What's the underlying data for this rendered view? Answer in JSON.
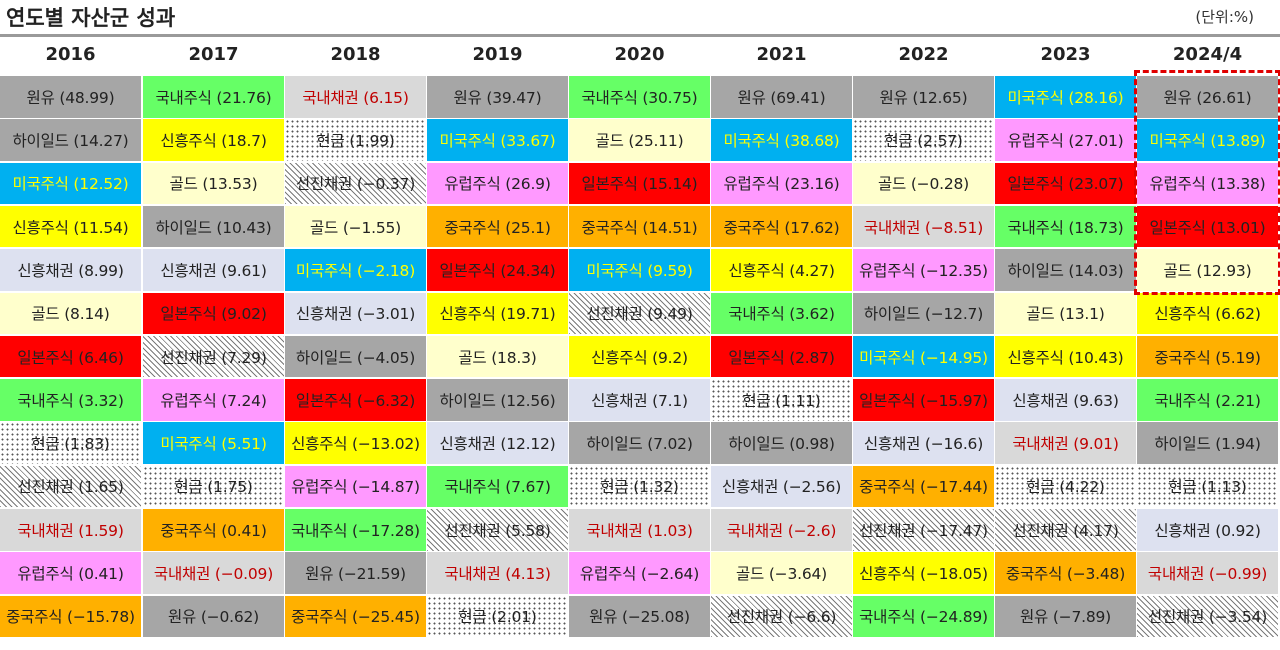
{
  "title": "연도별 자산군 성과",
  "unit": "(단위:%)",
  "colors": {
    "원유": "#a6a6a6",
    "하이일드": "#a6a6a6",
    "국내주식": "#66ff66",
    "신흥주식": "#ffff00",
    "미국주식": "#00b0f0",
    "골드": "#ffffcc",
    "신흥채권": "#dde1f0",
    "일본주식": "#ff0000",
    "유럽주식": "#ff99ff",
    "중국주식": "#ffb000",
    "국내채권": "#d9d9d9",
    "현금": "dotted-pattern",
    "선진채권": "hatched-pattern",
    "highlight_border": "#e00000"
  },
  "chart_data": {
    "type": "table",
    "title": "연도별 자산군 성과",
    "unit": "(단위:%)",
    "highlighted_column": "2024/4",
    "columns": [
      {
        "year": "2016",
        "entries": [
          {
            "asset": "원유",
            "value": 48.99,
            "label": "원유 (48.99)"
          },
          {
            "asset": "하이일드",
            "value": 14.27,
            "label": "하이일드 (14.27)"
          },
          {
            "asset": "미국주식",
            "value": 12.52,
            "label": "미국주식 (12.52)"
          },
          {
            "asset": "신흥주식",
            "value": 11.54,
            "label": "신흥주식 (11.54)"
          },
          {
            "asset": "신흥채권",
            "value": 8.99,
            "label": "신흥채권 (8.99)"
          },
          {
            "asset": "골드",
            "value": 8.14,
            "label": "골드 (8.14)"
          },
          {
            "asset": "일본주식",
            "value": 6.46,
            "label": "일본주식 (6.46)"
          },
          {
            "asset": "국내주식",
            "value": 3.32,
            "label": "국내주식 (3.32)"
          },
          {
            "asset": "현금",
            "value": 1.83,
            "label": "현금 (1.83)"
          },
          {
            "asset": "선진채권",
            "value": 1.65,
            "label": "선진채권 (1.65)"
          },
          {
            "asset": "국내채권",
            "value": 1.59,
            "label": "국내채권 (1.59)"
          },
          {
            "asset": "유럽주식",
            "value": 0.41,
            "label": "유럽주식 (0.41)"
          },
          {
            "asset": "중국주식",
            "value": -15.78,
            "label": "중국주식 (−15.78)"
          }
        ]
      },
      {
        "year": "2017",
        "entries": [
          {
            "asset": "국내주식",
            "value": 21.76,
            "label": "국내주식 (21.76)"
          },
          {
            "asset": "신흥주식",
            "value": 18.7,
            "label": "신흥주식 (18.7)"
          },
          {
            "asset": "골드",
            "value": 13.53,
            "label": "골드 (13.53)"
          },
          {
            "asset": "하이일드",
            "value": 10.43,
            "label": "하이일드 (10.43)"
          },
          {
            "asset": "신흥채권",
            "value": 9.61,
            "label": "신흥채권 (9.61)"
          },
          {
            "asset": "일본주식",
            "value": 9.02,
            "label": "일본주식 (9.02)"
          },
          {
            "asset": "선진채권",
            "value": 7.29,
            "label": "선진채권 (7.29)"
          },
          {
            "asset": "유럽주식",
            "value": 7.24,
            "label": "유럽주식 (7.24)"
          },
          {
            "asset": "미국주식",
            "value": 5.51,
            "label": "미국주식 (5.51)"
          },
          {
            "asset": "현금",
            "value": 1.75,
            "label": "현금 (1.75)"
          },
          {
            "asset": "중국주식",
            "value": 0.41,
            "label": "중국주식 (0.41)"
          },
          {
            "asset": "국내채권",
            "value": -0.09,
            "label": "국내채권 (−0.09)"
          },
          {
            "asset": "원유",
            "value": -0.62,
            "label": "원유 (−0.62)"
          }
        ]
      },
      {
        "year": "2018",
        "entries": [
          {
            "asset": "국내채권",
            "value": 6.15,
            "label": "국내채권 (6.15)"
          },
          {
            "asset": "현금",
            "value": 1.99,
            "label": "현금 (1.99)"
          },
          {
            "asset": "선진채권",
            "value": -0.37,
            "label": "선진채권 (−0.37)"
          },
          {
            "asset": "골드",
            "value": -1.55,
            "label": "골드 (−1.55)"
          },
          {
            "asset": "미국주식",
            "value": -2.18,
            "label": "미국주식 (−2.18)"
          },
          {
            "asset": "신흥채권",
            "value": -3.01,
            "label": "신흥채권 (−3.01)"
          },
          {
            "asset": "하이일드",
            "value": -4.05,
            "label": "하이일드 (−4.05)"
          },
          {
            "asset": "일본주식",
            "value": -6.32,
            "label": "일본주식 (−6.32)"
          },
          {
            "asset": "신흥주식",
            "value": -13.02,
            "label": "신흥주식 (−13.02)"
          },
          {
            "asset": "유럽주식",
            "value": -14.87,
            "label": "유럽주식 (−14.87)"
          },
          {
            "asset": "국내주식",
            "value": -17.28,
            "label": "국내주식 (−17.28)"
          },
          {
            "asset": "원유",
            "value": -21.59,
            "label": "원유 (−21.59)"
          },
          {
            "asset": "중국주식",
            "value": -25.45,
            "label": "중국주식 (−25.45)"
          }
        ]
      },
      {
        "year": "2019",
        "entries": [
          {
            "asset": "원유",
            "value": 39.47,
            "label": "원유 (39.47)"
          },
          {
            "asset": "미국주식",
            "value": 33.67,
            "label": "미국주식 (33.67)"
          },
          {
            "asset": "유럽주식",
            "value": 26.9,
            "label": "유럽주식 (26.9)"
          },
          {
            "asset": "중국주식",
            "value": 25.1,
            "label": "중국주식 (25.1)"
          },
          {
            "asset": "일본주식",
            "value": 24.34,
            "label": "일본주식 (24.34)"
          },
          {
            "asset": "신흥주식",
            "value": 19.71,
            "label": "신흥주식 (19.71)"
          },
          {
            "asset": "골드",
            "value": 18.3,
            "label": "골드 (18.3)"
          },
          {
            "asset": "하이일드",
            "value": 12.56,
            "label": "하이일드 (12.56)"
          },
          {
            "asset": "신흥채권",
            "value": 12.12,
            "label": "신흥채권 (12.12)"
          },
          {
            "asset": "국내주식",
            "value": 7.67,
            "label": "국내주식 (7.67)"
          },
          {
            "asset": "선진채권",
            "value": 5.58,
            "label": "선진채권 (5.58)"
          },
          {
            "asset": "국내채권",
            "value": 4.13,
            "label": "국내채권 (4.13)"
          },
          {
            "asset": "현금",
            "value": 2.01,
            "label": "현금 (2.01)"
          }
        ]
      },
      {
        "year": "2020",
        "entries": [
          {
            "asset": "국내주식",
            "value": 30.75,
            "label": "국내주식 (30.75)"
          },
          {
            "asset": "골드",
            "value": 25.11,
            "label": "골드 (25.11)"
          },
          {
            "asset": "일본주식",
            "value": 15.14,
            "label": "일본주식 (15.14)"
          },
          {
            "asset": "중국주식",
            "value": 14.51,
            "label": "중국주식 (14.51)"
          },
          {
            "asset": "미국주식",
            "value": 9.59,
            "label": "미국주식 (9.59)"
          },
          {
            "asset": "선진채권",
            "value": 9.49,
            "label": "선진채권 (9.49)"
          },
          {
            "asset": "신흥주식",
            "value": 9.2,
            "label": "신흥주식 (9.2)"
          },
          {
            "asset": "신흥채권",
            "value": 7.1,
            "label": "신흥채권 (7.1)"
          },
          {
            "asset": "하이일드",
            "value": 7.02,
            "label": "하이일드 (7.02)"
          },
          {
            "asset": "현금",
            "value": 1.32,
            "label": "현금 (1.32)"
          },
          {
            "asset": "국내채권",
            "value": 1.03,
            "label": "국내채권 (1.03)"
          },
          {
            "asset": "유럽주식",
            "value": -2.64,
            "label": "유럽주식 (−2.64)"
          },
          {
            "asset": "원유",
            "value": -25.08,
            "label": "원유 (−25.08)"
          }
        ]
      },
      {
        "year": "2021",
        "entries": [
          {
            "asset": "원유",
            "value": 69.41,
            "label": "원유 (69.41)"
          },
          {
            "asset": "미국주식",
            "value": 38.68,
            "label": "미국주식 (38.68)"
          },
          {
            "asset": "유럽주식",
            "value": 23.16,
            "label": "유럽주식 (23.16)"
          },
          {
            "asset": "중국주식",
            "value": 17.62,
            "label": "중국주식 (17.62)"
          },
          {
            "asset": "신흥주식",
            "value": 4.27,
            "label": "신흥주식 (4.27)"
          },
          {
            "asset": "국내주식",
            "value": 3.62,
            "label": "국내주식 (3.62)"
          },
          {
            "asset": "일본주식",
            "value": 2.87,
            "label": "일본주식 (2.87)"
          },
          {
            "asset": "현금",
            "value": 1.11,
            "label": "현금 (1.11)"
          },
          {
            "asset": "하이일드",
            "value": 0.98,
            "label": "하이일드 (0.98)"
          },
          {
            "asset": "신흥채권",
            "value": -2.56,
            "label": "신흥채권 (−2.56)"
          },
          {
            "asset": "국내채권",
            "value": -2.6,
            "label": "국내채권 (−2.6)"
          },
          {
            "asset": "골드",
            "value": -3.64,
            "label": "골드 (−3.64)"
          },
          {
            "asset": "선진채권",
            "value": -6.6,
            "label": "선진채권 (−6.6)"
          }
        ]
      },
      {
        "year": "2022",
        "entries": [
          {
            "asset": "원유",
            "value": 12.65,
            "label": "원유 (12.65)"
          },
          {
            "asset": "현금",
            "value": 2.57,
            "label": "현금 (2.57)"
          },
          {
            "asset": "골드",
            "value": -0.28,
            "label": "골드 (−0.28)"
          },
          {
            "asset": "국내채권",
            "value": -8.51,
            "label": "국내채권 (−8.51)"
          },
          {
            "asset": "유럽주식",
            "value": -12.35,
            "label": "유럽주식 (−12.35)"
          },
          {
            "asset": "하이일드",
            "value": -12.7,
            "label": "하이일드 (−12.7)"
          },
          {
            "asset": "미국주식",
            "value": -14.95,
            "label": "미국주식 (−14.95)"
          },
          {
            "asset": "일본주식",
            "value": -15.97,
            "label": "일본주식 (−15.97)"
          },
          {
            "asset": "신흥채권",
            "value": -16.6,
            "label": "신흥채권 (−16.6)"
          },
          {
            "asset": "중국주식",
            "value": -17.44,
            "label": "중국주식 (−17.44)"
          },
          {
            "asset": "선진채권",
            "value": -17.47,
            "label": "선진채권 (−17.47)"
          },
          {
            "asset": "신흥주식",
            "value": -18.05,
            "label": "신흥주식 (−18.05)"
          },
          {
            "asset": "국내주식",
            "value": -24.89,
            "label": "국내주식 (−24.89)"
          }
        ]
      },
      {
        "year": "2023",
        "entries": [
          {
            "asset": "미국주식",
            "value": 28.16,
            "label": "미국주식 (28.16)"
          },
          {
            "asset": "유럽주식",
            "value": 27.01,
            "label": "유럽주식 (27.01)"
          },
          {
            "asset": "일본주식",
            "value": 23.07,
            "label": "일본주식 (23.07)"
          },
          {
            "asset": "국내주식",
            "value": 18.73,
            "label": "국내주식 (18.73)"
          },
          {
            "asset": "하이일드",
            "value": 14.03,
            "label": "하이일드 (14.03)"
          },
          {
            "asset": "골드",
            "value": 13.1,
            "label": "골드 (13.1)"
          },
          {
            "asset": "신흥주식",
            "value": 10.43,
            "label": "신흥주식 (10.43)"
          },
          {
            "asset": "신흥채권",
            "value": 9.63,
            "label": "신흥채권 (9.63)"
          },
          {
            "asset": "국내채권",
            "value": 9.01,
            "label": "국내채권 (9.01)"
          },
          {
            "asset": "현금",
            "value": 4.22,
            "label": "현금 (4.22)"
          },
          {
            "asset": "선진채권",
            "value": 4.17,
            "label": "선진채권 (4.17)"
          },
          {
            "asset": "중국주식",
            "value": -3.48,
            "label": "중국주식 (−3.48)"
          },
          {
            "asset": "원유",
            "value": -7.89,
            "label": "원유 (−7.89)"
          }
        ]
      },
      {
        "year": "2024/4",
        "entries": [
          {
            "asset": "원유",
            "value": 26.61,
            "label": "원유 (26.61)"
          },
          {
            "asset": "미국주식",
            "value": 13.89,
            "label": "미국주식 (13.89)"
          },
          {
            "asset": "유럽주식",
            "value": 13.38,
            "label": "유럽주식 (13.38)"
          },
          {
            "asset": "일본주식",
            "value": 13.01,
            "label": "일본주식 (13.01)"
          },
          {
            "asset": "골드",
            "value": 12.93,
            "label": "골드 (12.93)"
          },
          {
            "asset": "신흥주식",
            "value": 6.62,
            "label": "신흥주식 (6.62)"
          },
          {
            "asset": "중국주식",
            "value": 5.19,
            "label": "중국주식 (5.19)"
          },
          {
            "asset": "국내주식",
            "value": 2.21,
            "label": "국내주식 (2.21)"
          },
          {
            "asset": "하이일드",
            "value": 1.94,
            "label": "하이일드 (1.94)"
          },
          {
            "asset": "현금",
            "value": 1.13,
            "label": "현금 (1.13)"
          },
          {
            "asset": "신흥채권",
            "value": 0.92,
            "label": "신흥채권 (0.92)"
          },
          {
            "asset": "국내채권",
            "value": -0.99,
            "label": "국내채권 (−0.99)"
          },
          {
            "asset": "선진채권",
            "value": -3.54,
            "label": "선진채권 (−3.54)"
          }
        ]
      }
    ]
  }
}
